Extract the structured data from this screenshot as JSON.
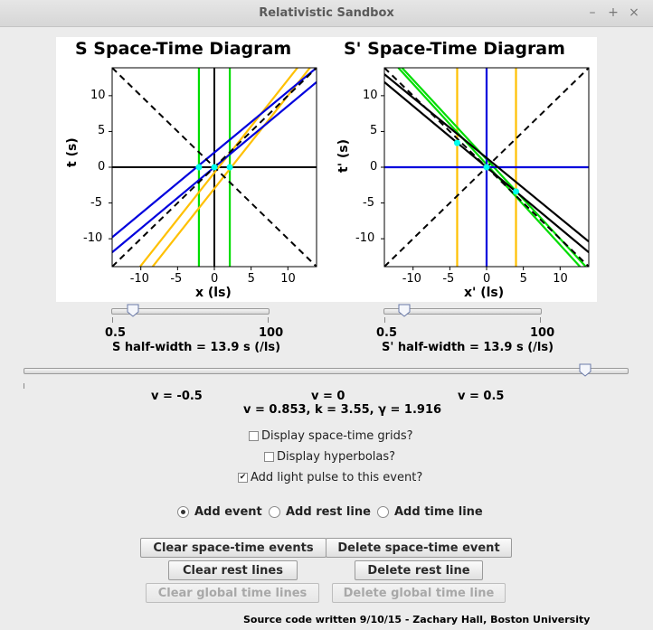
{
  "window": {
    "title": "Relativistic Sandbox",
    "controls": [
      "–",
      "+",
      "×"
    ]
  },
  "colors": {
    "green": "#00dd00",
    "orange": "#ffc000",
    "blue": "#0000dd",
    "cyan": "#00ffee",
    "black": "#000000"
  },
  "chart_data": [
    {
      "type": "line",
      "title": "S Space-Time Diagram",
      "xlabel": "x (ls)",
      "ylabel": "t (s)",
      "xlim": [
        -13.9,
        13.9
      ],
      "ylim": [
        -13.9,
        13.9
      ],
      "xticks": [
        "-10",
        "-5",
        "0",
        "5",
        "10"
      ],
      "yticks": [
        "10",
        "5",
        "0",
        "-5",
        "-10"
      ],
      "grid": false,
      "series": [
        {
          "color": "green",
          "points": [
            [
              -2.1,
              -13.9
            ],
            [
              -2.1,
              13.9
            ]
          ]
        },
        {
          "color": "green",
          "points": [
            [
              2.1,
              -13.9
            ],
            [
              2.1,
              13.9
            ]
          ]
        },
        {
          "color": "orange",
          "points": [
            [
              -10.1,
              -13.9
            ],
            [
              11.3,
              13.9
            ]
          ]
        },
        {
          "color": "orange",
          "points": [
            [
              -8.4,
              -13.9
            ],
            [
              13.0,
              13.9
            ]
          ]
        },
        {
          "color": "blue",
          "points": [
            [
              -13.9,
              -11.9
            ],
            [
              13.9,
              11.9
            ]
          ]
        },
        {
          "color": "blue",
          "points": [
            [
              -13.9,
              -9.8
            ],
            [
              13.9,
              13.9
            ]
          ]
        }
      ],
      "light_lines": true,
      "events": [
        [
          -2.1,
          0
        ],
        [
          2.1,
          0
        ],
        [
          0,
          0
        ]
      ]
    },
    {
      "type": "line",
      "title": "S' Space-Time Diagram",
      "xlabel": "x' (ls)",
      "ylabel": "t' (s)",
      "xlim": [
        -13.9,
        13.9
      ],
      "ylim": [
        -13.9,
        13.9
      ],
      "xticks": [
        "-10",
        "-5",
        "0",
        "5",
        "10"
      ],
      "yticks": [
        "10",
        "5",
        "0",
        "-5",
        "-10"
      ],
      "grid": false,
      "series": [
        {
          "color": "orange",
          "points": [
            [
              -4.0,
              -13.9
            ],
            [
              -4.0,
              13.9
            ]
          ]
        },
        {
          "color": "orange",
          "points": [
            [
              4.0,
              -13.9
            ],
            [
              4.0,
              13.9
            ]
          ]
        },
        {
          "color": "green",
          "points": [
            [
              -12.0,
              13.9
            ],
            [
              12.7,
              -13.9
            ]
          ]
        },
        {
          "color": "green",
          "points": [
            [
              -11.5,
              13.9
            ],
            [
              13.5,
              -13.9
            ]
          ]
        },
        {
          "color": "blue",
          "points": [
            [
              -13.9,
              0
            ],
            [
              13.9,
              0
            ]
          ]
        },
        {
          "color": "blue",
          "points": [
            [
              0,
              -13.9
            ],
            [
              0,
              13.9
            ]
          ]
        },
        {
          "color": "black",
          "points": [
            [
              -13.9,
              11.9
            ],
            [
              13.9,
              -11.9
            ]
          ]
        },
        {
          "color": "black",
          "points": [
            [
              -13.9,
              13.0
            ],
            [
              13.9,
              -10.4
            ]
          ]
        }
      ],
      "light_lines": true,
      "events": [
        [
          -4.0,
          3.4
        ],
        [
          4.0,
          -3.4
        ],
        [
          0,
          0
        ]
      ]
    }
  ],
  "s_slider": {
    "min": "0.5",
    "max": "100",
    "label": "S half-width = 13.9 s (/ls)",
    "value": 13.9
  },
  "sp_slider": {
    "min": "0.5",
    "max": "100",
    "label": "S' half-width = 13.9 s (/ls)",
    "value": 13.9
  },
  "velocity": {
    "ticks": [
      "v = -0.5",
      "v = 0",
      "v = 0.5"
    ],
    "readout": "v =  0.853, k =  3.55, γ =  1.916",
    "value": 0.853
  },
  "options": {
    "grids": {
      "label": "Display space-time grids?",
      "checked": false
    },
    "hyperbolas": {
      "label": "Display hyperbolas?",
      "checked": false
    },
    "light_pulse": {
      "label": "Add light pulse to this event?",
      "checked": true
    }
  },
  "modes": [
    {
      "label": "Add event",
      "selected": true
    },
    {
      "label": "Add rest line",
      "selected": false
    },
    {
      "label": "Add time line",
      "selected": false
    }
  ],
  "buttons": {
    "clear_events": "Clear space-time events",
    "delete_event": "Delete space-time event",
    "clear_rest": "Clear rest lines",
    "delete_rest": "Delete rest line",
    "clear_global": "Clear global time lines",
    "delete_global": "Delete global time line"
  },
  "footer": "Source code written 9/10/15 - Zachary Hall, Boston University"
}
